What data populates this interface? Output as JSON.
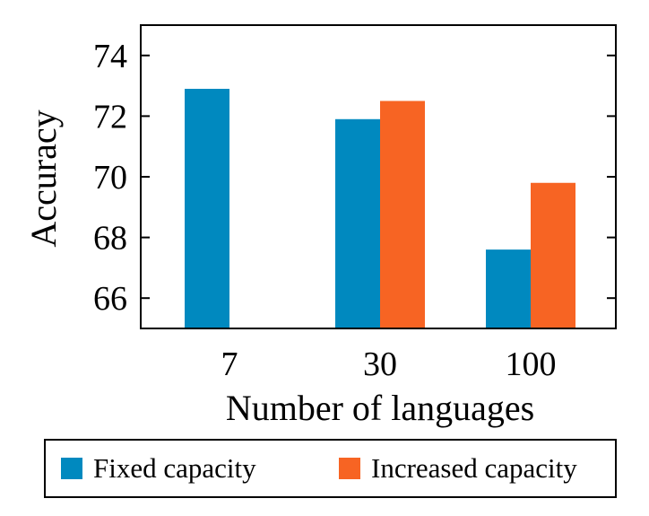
{
  "chart_data": {
    "type": "bar",
    "categories": [
      "7",
      "30",
      "100"
    ],
    "series": [
      {
        "name": "Fixed capacity",
        "values": [
          72.9,
          71.9,
          67.6
        ],
        "color": "#0089BF"
      },
      {
        "name": "Increased capacity",
        "values": [
          null,
          72.5,
          69.8
        ],
        "color": "#F76423"
      }
    ],
    "xlabel": "Number of languages",
    "ylabel": "Accuracy",
    "yticks": [
      "66",
      "68",
      "70",
      "72",
      "74"
    ],
    "ylim": [
      65.0,
      75.0
    ],
    "grid": false,
    "legend_position": "bottom"
  }
}
